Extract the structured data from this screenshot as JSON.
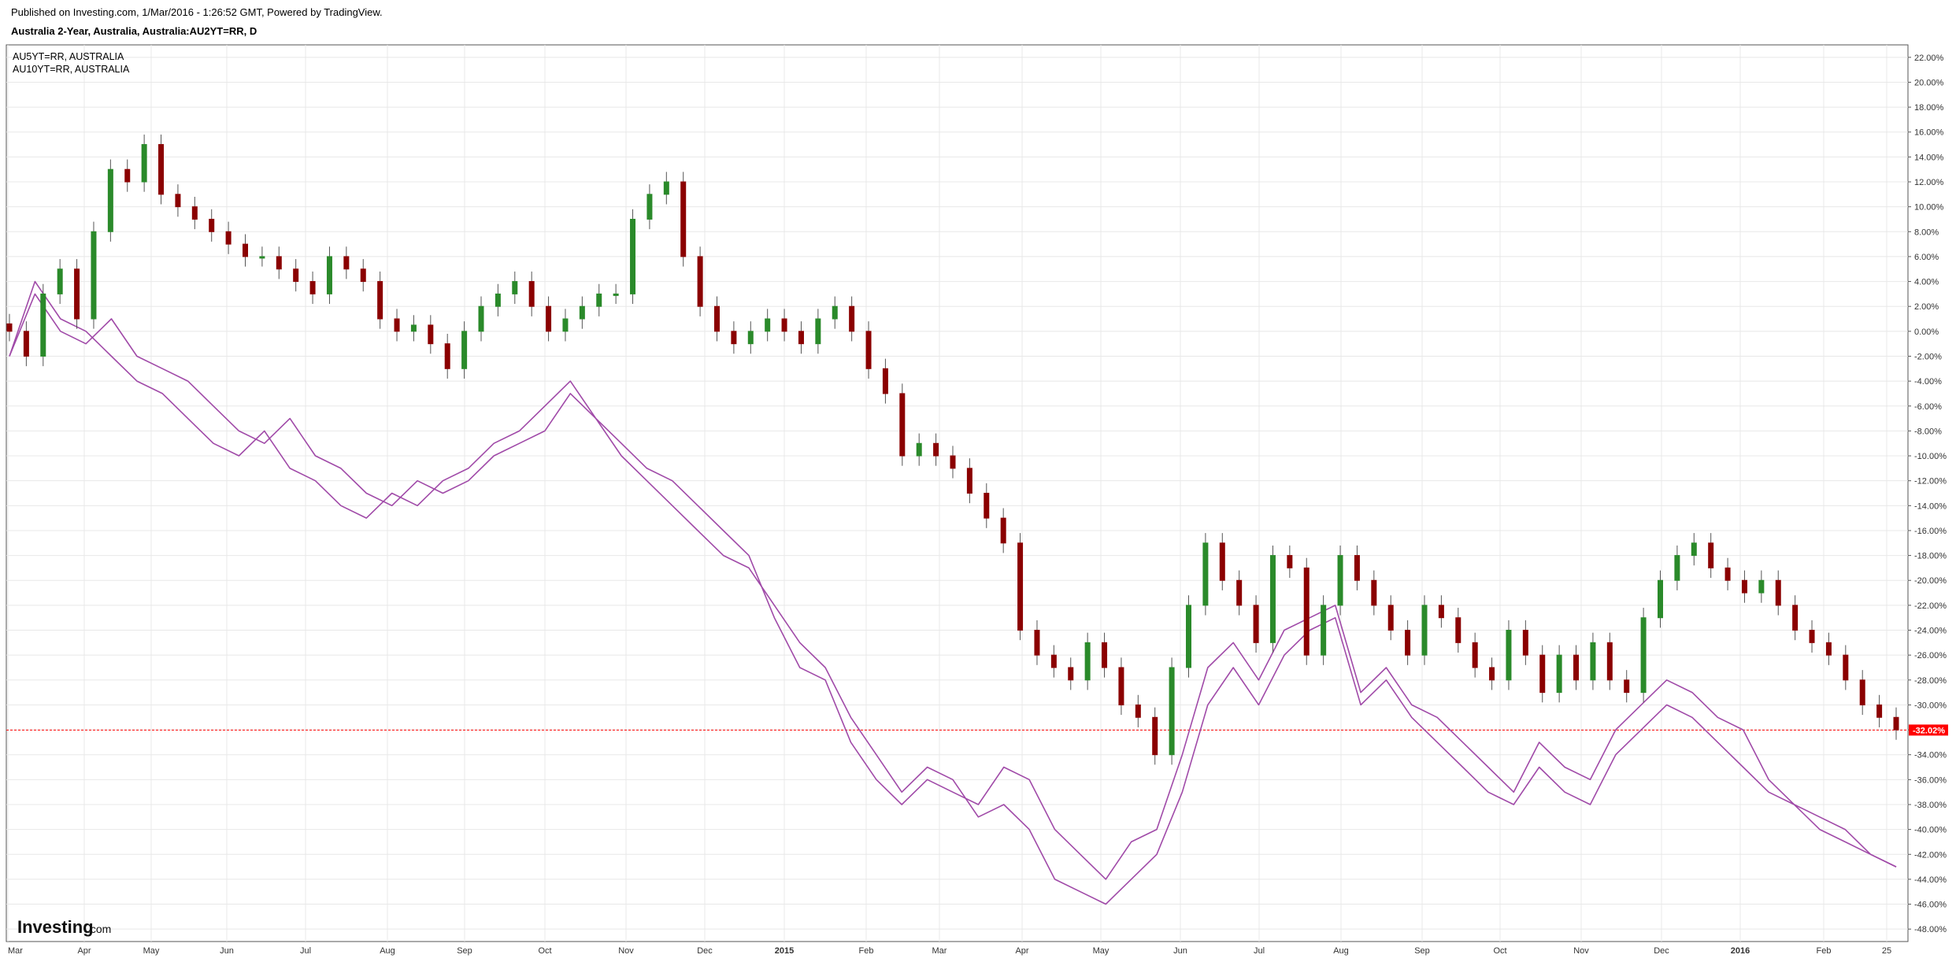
{
  "header": {
    "published": "Published on Investing.com, 1/Mar/2016 - 1:26:52 GMT, Powered by TradingView.",
    "instrument": "Australia 2-Year, Australia, Australia:AU2YT=RR, D"
  },
  "legend": [
    "AU5YT=RR, AUSTRALIA",
    "AU10YT=RR, AUSTRALIA"
  ],
  "logo": {
    "main": "Investing",
    "domain": ".com"
  },
  "colors": {
    "up": "#2a8a2a",
    "down": "#8b0000",
    "overlay": "#a04aa8",
    "price_line": "#ff0000",
    "grid": "#e8e8e8"
  },
  "last_price_label": "-32.02%",
  "chart_data": {
    "type": "line",
    "y_axis": {
      "side": "right",
      "unit": "%",
      "range": [
        -49,
        23
      ],
      "tick_step": 2,
      "tick_labels": [
        "22.00%",
        "20.00%",
        "18.00%",
        "16.00%",
        "14.00%",
        "12.00%",
        "10.00%",
        "8.00%",
        "6.00%",
        "4.00%",
        "2.00%",
        "0.00%",
        "-2.00%",
        "-4.00%",
        "-6.00%",
        "-8.00%",
        "-10.00%",
        "-12.00%",
        "-14.00%",
        "-16.00%",
        "-18.00%",
        "-20.00%",
        "-22.00%",
        "-24.00%",
        "-26.00%",
        "-28.00%",
        "-30.00%",
        "-32.00%",
        "-34.00%",
        "-36.00%",
        "-38.00%",
        "-40.00%",
        "-42.00%",
        "-44.00%",
        "-46.00%",
        "-48.00%"
      ]
    },
    "x_axis": {
      "tick_labels": [
        "Mar",
        "Apr",
        "May",
        "Jun",
        "Jul",
        "Aug",
        "Sep",
        "Oct",
        "Nov",
        "Dec",
        "2015",
        "Feb",
        "Mar",
        "Apr",
        "May",
        "Jun",
        "Jul",
        "Aug",
        "Sep",
        "Oct",
        "Nov",
        "Dec",
        "2016",
        "Feb",
        "25"
      ],
      "bold_labels": [
        "2015",
        "2016"
      ]
    },
    "current_value": -32.02,
    "grid": true,
    "series": [
      {
        "name": "Australia 2-Year",
        "style": "candlestick",
        "values": [
          0,
          -2,
          3,
          5,
          1,
          8,
          13,
          12,
          15,
          11,
          10,
          9,
          8,
          7,
          6,
          6,
          5,
          4,
          3,
          6,
          5,
          4,
          1,
          0,
          0.5,
          -1,
          -3,
          0,
          2,
          3,
          4,
          2,
          0,
          1,
          2,
          3,
          3,
          9,
          11,
          12,
          6,
          2,
          0,
          -1,
          0,
          1,
          0,
          -1,
          1,
          2,
          0,
          -3,
          -5,
          -10,
          -9,
          -10,
          -11,
          -13,
          -15,
          -17,
          -24,
          -26,
          -27,
          -28,
          -25,
          -27,
          -30,
          -31,
          -34,
          -27,
          -22,
          -17,
          -20,
          -22,
          -25,
          -18,
          -19,
          -26,
          -22,
          -18,
          -20,
          -22,
          -24,
          -26,
          -22,
          -23,
          -25,
          -27,
          -28,
          -24,
          -26,
          -29,
          -26,
          -28,
          -25,
          -28,
          -29,
          -23,
          -20,
          -18,
          -17,
          -19,
          -20,
          -21,
          -20,
          -22,
          -24,
          -25,
          -26,
          -28,
          -30,
          -31,
          -32
        ]
      },
      {
        "name": "AU5YT=RR, AUSTRALIA",
        "style": "line",
        "values": [
          -2,
          3,
          0,
          -1,
          1,
          -2,
          -3,
          -4,
          -6,
          -8,
          -9,
          -7,
          -10,
          -11,
          -13,
          -14,
          -12,
          -13,
          -12,
          -10,
          -9,
          -8,
          -5,
          -7,
          -9,
          -11,
          -12,
          -14,
          -16,
          -18,
          -23,
          -27,
          -28,
          -33,
          -36,
          -38,
          -36,
          -37,
          -38,
          -35,
          -36,
          -40,
          -42,
          -44,
          -41,
          -40,
          -34,
          -27,
          -25,
          -28,
          -24,
          -23,
          -22,
          -29,
          -27,
          -30,
          -31,
          -33,
          -35,
          -37,
          -33,
          -35,
          -36,
          -32,
          -30,
          -28,
          -29,
          -31,
          -32,
          -36,
          -38,
          -39,
          -40,
          -42,
          -43
        ]
      },
      {
        "name": "AU10YT=RR, AUSTRALIA",
        "style": "line",
        "values": [
          -2,
          4,
          1,
          0,
          -2,
          -4,
          -5,
          -7,
          -9,
          -10,
          -8,
          -11,
          -12,
          -14,
          -15,
          -13,
          -14,
          -12,
          -11,
          -9,
          -8,
          -6,
          -4,
          -7,
          -10,
          -12,
          -14,
          -16,
          -18,
          -19,
          -22,
          -25,
          -27,
          -31,
          -34,
          -37,
          -35,
          -36,
          -39,
          -38,
          -40,
          -44,
          -45,
          -46,
          -44,
          -42,
          -37,
          -30,
          -27,
          -30,
          -26,
          -24,
          -23,
          -30,
          -28,
          -31,
          -33,
          -35,
          -37,
          -38,
          -35,
          -37,
          -38,
          -34,
          -32,
          -30,
          -31,
          -33,
          -35,
          -37,
          -38,
          -40,
          -41,
          -42,
          -43
        ]
      }
    ]
  }
}
